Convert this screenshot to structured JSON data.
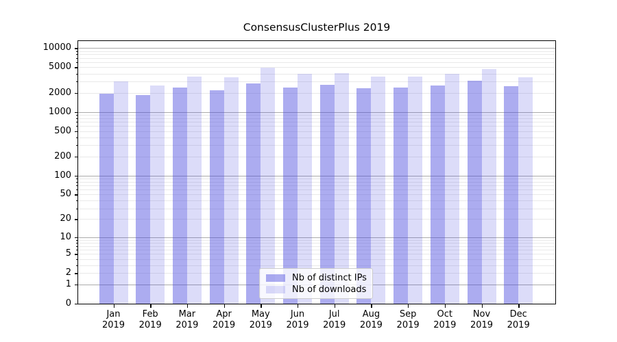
{
  "title": "ConsensusClusterPlus 2019",
  "chart_data": {
    "type": "bar",
    "title": "ConsensusClusterPlus 2019",
    "categories": [
      "Jan",
      "Feb",
      "Mar",
      "Apr",
      "May",
      "Jun",
      "Jul",
      "Aug",
      "Sep",
      "Oct",
      "Nov",
      "Dec"
    ],
    "x_year_label": "2019",
    "series": [
      {
        "name": "Nb of distinct IPs",
        "color": "rgba(70,70,222,0.45)",
        "values": [
          1950,
          1850,
          2400,
          2200,
          2800,
          2400,
          2650,
          2350,
          2400,
          2600,
          3100,
          2550
        ]
      },
      {
        "name": "Nb of downloads",
        "color": "rgba(70,70,222,0.19)",
        "values": [
          3000,
          2600,
          3600,
          3500,
          4900,
          3950,
          4100,
          3600,
          3600,
          3950,
          4700,
          3500
        ]
      }
    ],
    "y_ticks": [
      0,
      1,
      2,
      5,
      10,
      20,
      50,
      100,
      200,
      500,
      1000,
      2000,
      5000,
      10000
    ],
    "y_scale": "log1p",
    "y_axis_top_value": 12900,
    "grid": "log major+minor horizontal",
    "legend_position": "lower center",
    "xlabel": "",
    "ylabel": ""
  },
  "colors": {
    "bar_distinct_ips_rendered": "#acacf0",
    "bar_downloads_rendered": "#dcdcf9",
    "grid_major": "#ababab",
    "grid_minor": "#e9e9e9",
    "axis": "#000000",
    "background": "#ffffff"
  }
}
